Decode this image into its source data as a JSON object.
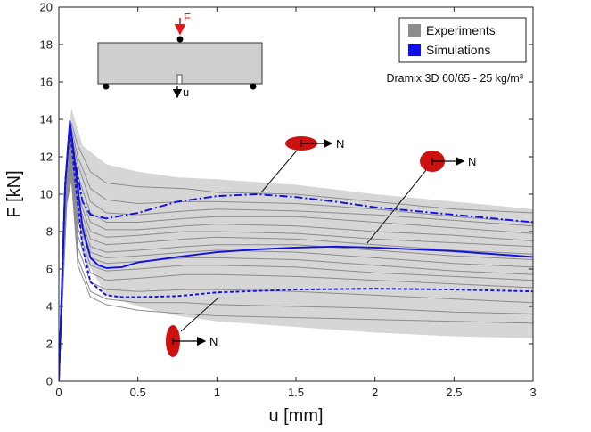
{
  "chart_data": {
    "type": "line",
    "xlabel": "u [mm]",
    "ylabel": "F [kN]",
    "xlim": [
      0,
      3
    ],
    "ylim": [
      0,
      20
    ],
    "xticks": [
      0,
      0.5,
      1,
      1.5,
      2,
      2.5,
      3
    ],
    "xtick_labels": [
      "0",
      "0.5",
      "1",
      "1.5",
      "2",
      "2.5",
      "3"
    ],
    "yticks": [
      0,
      2,
      4,
      6,
      8,
      10,
      12,
      14,
      16,
      18,
      20
    ],
    "ytick_labels": [
      "0",
      "2",
      "4",
      "6",
      "8",
      "10",
      "12",
      "14",
      "16",
      "18",
      "20"
    ],
    "grid": false,
    "legend_position": "top-right",
    "legend": [
      {
        "label": "Experiments",
        "color": "#8c8c8c"
      },
      {
        "label": "Simulations",
        "color": "#1010e6"
      }
    ],
    "annotation": "Dramix 3D 60/65 - 25 kg/m³",
    "envelope": {
      "x": [
        0,
        0.05,
        0.08,
        0.15,
        0.3,
        0.5,
        0.75,
        1,
        1.5,
        2,
        2.5,
        3
      ],
      "upper": [
        0,
        12.5,
        14.6,
        12.6,
        11.6,
        11.2,
        10.9,
        10.8,
        10.5,
        10.0,
        9.6,
        9.2
      ],
      "lower": [
        0,
        11.0,
        13.3,
        6.8,
        4.6,
        4.0,
        3.5,
        3.2,
        2.9,
        2.6,
        2.4,
        2.3
      ]
    },
    "series": [
      {
        "style": "dash-dot",
        "color": "#1010e6",
        "x": [
          0,
          0.04,
          0.07,
          0.1,
          0.15,
          0.2,
          0.3,
          0.5,
          0.75,
          1,
          1.25,
          1.5,
          1.75,
          2,
          2.5,
          3
        ],
        "y": [
          0,
          10.5,
          13.8,
          11.9,
          9.6,
          8.9,
          8.7,
          9.0,
          9.6,
          9.9,
          10.0,
          9.85,
          9.6,
          9.3,
          8.9,
          8.5
        ]
      },
      {
        "style": "solid",
        "color": "#1010e6",
        "x": [
          0,
          0.04,
          0.07,
          0.1,
          0.15,
          0.2,
          0.25,
          0.3,
          0.4,
          0.5,
          0.75,
          1,
          1.25,
          1.5,
          1.75,
          2,
          2.5,
          3
        ],
        "y": [
          0,
          10.5,
          13.9,
          11.8,
          8.2,
          6.6,
          6.2,
          6.05,
          6.1,
          6.35,
          6.65,
          6.9,
          7.05,
          7.15,
          7.2,
          7.15,
          6.95,
          6.65
        ]
      },
      {
        "style": "dashed",
        "color": "#1010e6",
        "x": [
          0,
          0.04,
          0.07,
          0.1,
          0.15,
          0.2,
          0.3,
          0.4,
          0.5,
          0.75,
          1,
          1.5,
          2,
          2.5,
          3
        ],
        "y": [
          0,
          10.5,
          13.6,
          11.0,
          7.2,
          5.3,
          4.6,
          4.5,
          4.5,
          4.55,
          4.75,
          4.9,
          4.95,
          4.9,
          4.8
        ]
      }
    ],
    "experiments": [
      {
        "x": [
          0,
          0.05,
          0.08,
          0.12,
          0.2,
          0.3,
          0.5,
          0.8,
          1,
          1.5,
          2,
          2.5,
          3
        ],
        "y": [
          0,
          11.8,
          13.8,
          12.6,
          11.2,
          10.6,
          10.4,
          10.3,
          10.1,
          10.0,
          9.6,
          9.2,
          9.0
        ]
      },
      {
        "x": [
          0,
          0.05,
          0.08,
          0.12,
          0.2,
          0.3,
          0.5,
          0.8,
          1,
          1.5,
          2,
          2.5,
          3
        ],
        "y": [
          0,
          11.5,
          13.5,
          12.0,
          10.3,
          9.7,
          9.5,
          9.6,
          9.6,
          9.5,
          9.2,
          8.8,
          8.5
        ]
      },
      {
        "x": [
          0,
          0.05,
          0.08,
          0.12,
          0.2,
          0.3,
          0.5,
          0.8,
          1,
          1.5,
          2,
          2.5,
          3
        ],
        "y": [
          0,
          11.2,
          13.2,
          11.6,
          9.6,
          9.0,
          8.9,
          9.1,
          9.2,
          9.1,
          8.9,
          8.6,
          8.3
        ]
      },
      {
        "x": [
          0,
          0.05,
          0.08,
          0.12,
          0.2,
          0.3,
          0.5,
          0.8,
          1,
          1.5,
          2,
          2.5,
          3
        ],
        "y": [
          0,
          11.0,
          13.0,
          11.0,
          9.0,
          8.5,
          8.5,
          8.7,
          8.8,
          8.8,
          8.5,
          8.2,
          7.9
        ]
      },
      {
        "x": [
          0,
          0.05,
          0.08,
          0.12,
          0.2,
          0.3,
          0.5,
          0.8,
          1,
          1.5,
          2,
          2.5,
          3
        ],
        "y": [
          0,
          10.8,
          12.8,
          10.4,
          8.5,
          8.1,
          8.1,
          8.3,
          8.4,
          8.3,
          8.0,
          7.8,
          7.5
        ]
      },
      {
        "x": [
          0,
          0.05,
          0.08,
          0.12,
          0.2,
          0.3,
          0.5,
          0.8,
          1,
          1.5,
          2,
          2.5,
          3
        ],
        "y": [
          0,
          10.6,
          12.6,
          10.0,
          8.0,
          7.7,
          7.8,
          8.0,
          8.0,
          7.9,
          7.6,
          7.4,
          7.2
        ]
      },
      {
        "x": [
          0,
          0.05,
          0.08,
          0.12,
          0.2,
          0.3,
          0.5,
          0.8,
          1,
          1.5,
          2,
          2.5,
          3
        ],
        "y": [
          0,
          10.5,
          12.4,
          9.6,
          7.6,
          7.3,
          7.4,
          7.6,
          7.7,
          7.6,
          7.3,
          7.0,
          6.8
        ]
      },
      {
        "x": [
          0,
          0.05,
          0.08,
          0.12,
          0.2,
          0.3,
          0.5,
          0.8,
          1,
          1.5,
          2,
          2.5,
          3
        ],
        "y": [
          0,
          10.4,
          12.2,
          9.2,
          7.2,
          6.9,
          7.0,
          7.2,
          7.3,
          7.3,
          7.0,
          6.7,
          6.5
        ]
      },
      {
        "x": [
          0,
          0.05,
          0.08,
          0.12,
          0.2,
          0.3,
          0.5,
          0.8,
          1,
          1.5,
          2,
          2.5,
          3
        ],
        "y": [
          0,
          10.3,
          12.0,
          8.9,
          6.9,
          6.6,
          6.7,
          6.9,
          7.0,
          6.9,
          6.6,
          6.3,
          6.1
        ]
      },
      {
        "x": [
          0,
          0.05,
          0.08,
          0.12,
          0.2,
          0.3,
          0.5,
          0.8,
          1,
          1.5,
          2,
          2.5,
          3
        ],
        "y": [
          0,
          10.2,
          11.8,
          8.6,
          6.6,
          6.3,
          6.4,
          6.6,
          6.6,
          6.5,
          6.2,
          5.9,
          5.7
        ]
      },
      {
        "x": [
          0,
          0.05,
          0.08,
          0.12,
          0.2,
          0.3,
          0.5,
          0.8,
          1,
          1.5,
          2,
          2.5,
          3
        ],
        "y": [
          0,
          10.1,
          11.6,
          8.2,
          6.2,
          5.9,
          6.0,
          6.2,
          6.2,
          6.1,
          5.8,
          5.6,
          5.4
        ]
      },
      {
        "x": [
          0,
          0.05,
          0.08,
          0.12,
          0.2,
          0.3,
          0.5,
          0.8,
          1,
          1.5,
          2,
          2.5,
          3
        ],
        "y": [
          0,
          10.0,
          11.4,
          7.8,
          5.8,
          5.4,
          5.5,
          5.7,
          5.7,
          5.6,
          5.4,
          5.2,
          5.0
        ]
      },
      {
        "x": [
          0,
          0.05,
          0.08,
          0.12,
          0.2,
          0.3,
          0.5,
          0.8,
          1,
          1.5,
          2,
          2.5,
          3
        ],
        "y": [
          0,
          9.8,
          11.2,
          7.2,
          5.3,
          4.9,
          4.8,
          4.9,
          4.9,
          4.8,
          4.6,
          4.4,
          4.2
        ]
      },
      {
        "x": [
          0,
          0.05,
          0.08,
          0.12,
          0.2,
          0.3,
          0.5,
          0.8,
          1,
          1.5,
          2,
          2.5,
          3
        ],
        "y": [
          0,
          9.7,
          11.0,
          6.6,
          4.8,
          4.4,
          4.2,
          4.2,
          4.1,
          4.0,
          3.9,
          3.7,
          3.6
        ]
      },
      {
        "x": [
          0,
          0.05,
          0.08,
          0.12,
          0.2,
          0.3,
          0.5,
          0.8,
          1,
          1.5,
          2,
          2.5,
          3
        ],
        "y": [
          0,
          9.5,
          10.8,
          6.2,
          4.5,
          4.1,
          3.8,
          3.6,
          3.5,
          3.4,
          3.3,
          3.2,
          3.1
        ]
      }
    ]
  },
  "inset": {
    "force_label": "F",
    "displacement_label": "u"
  },
  "markers": [
    {
      "label": "N"
    },
    {
      "label": "N"
    },
    {
      "label": "N"
    }
  ]
}
